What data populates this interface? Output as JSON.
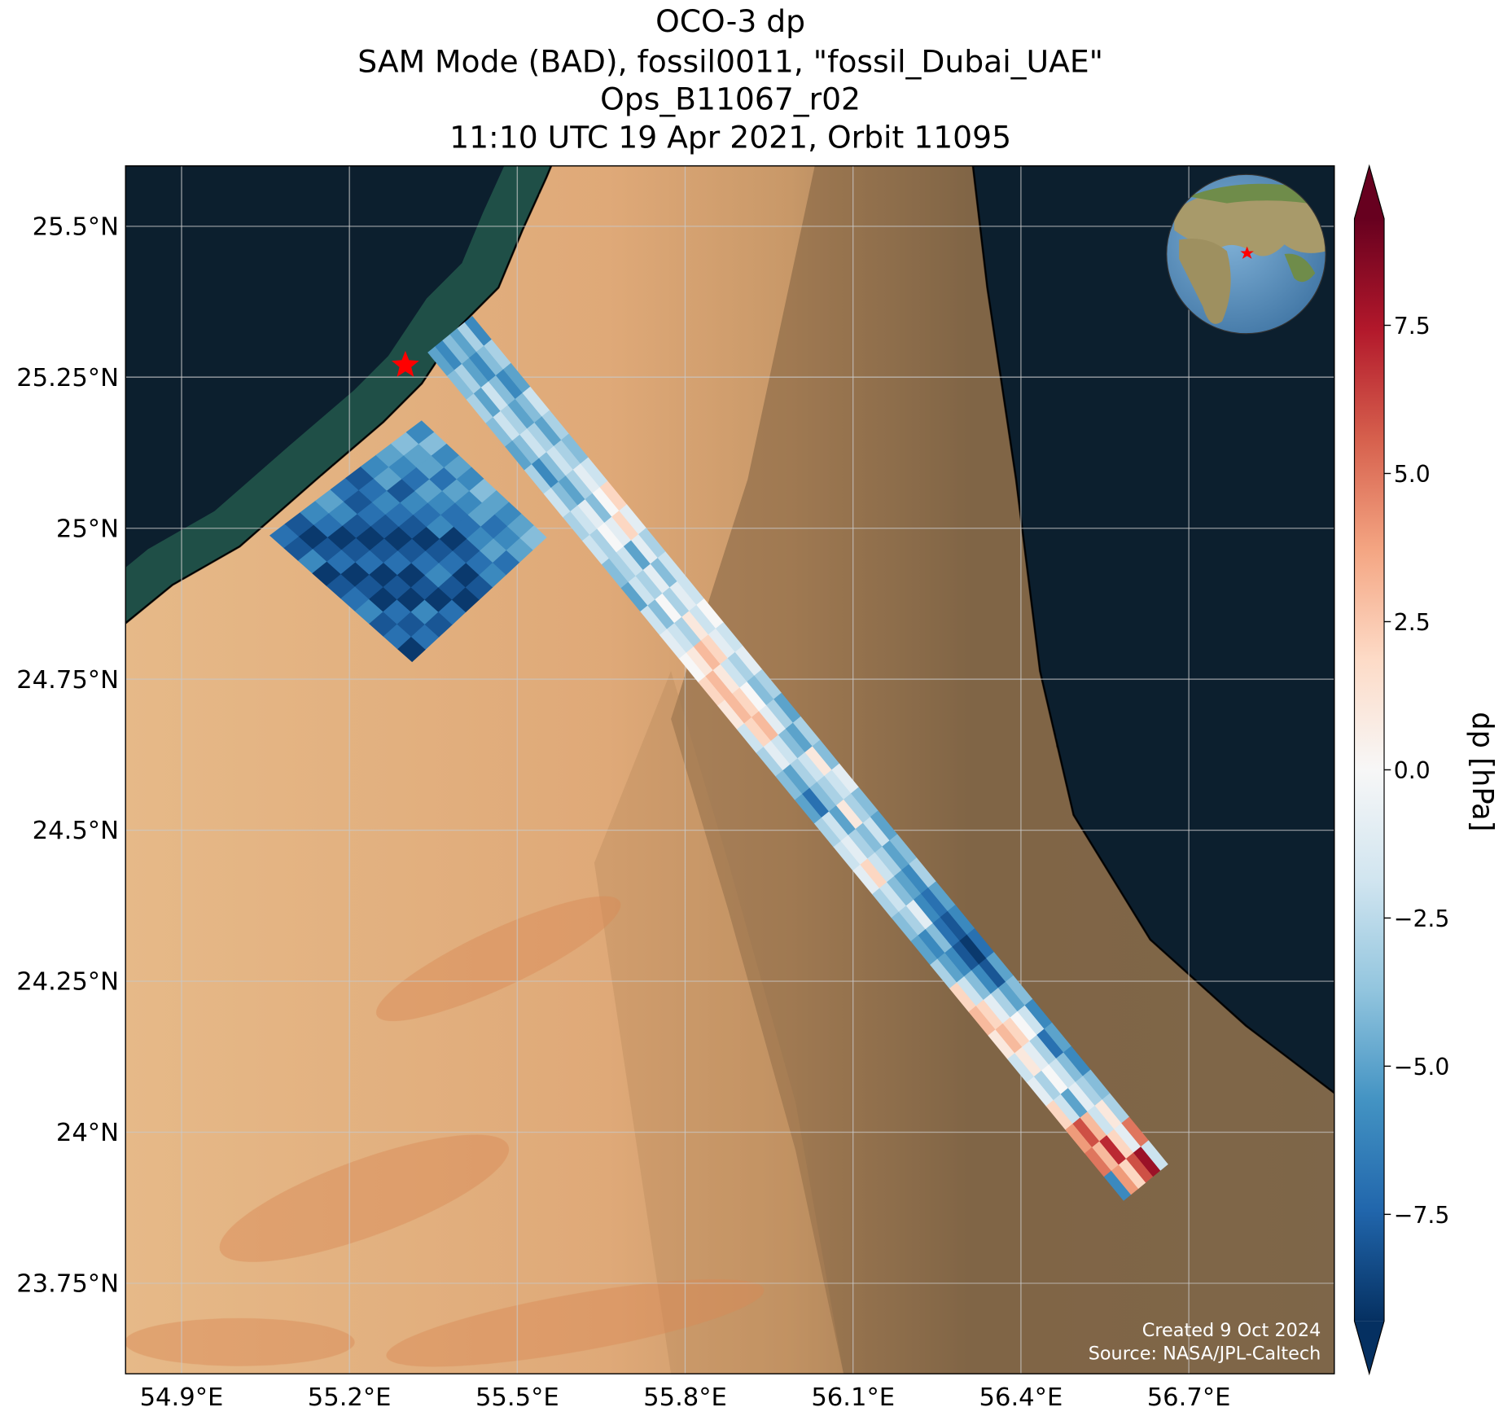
{
  "chart_data": {
    "type": "map",
    "title": [
      "OCO-3 dp",
      "SAM Mode (BAD), fossil0011, \"fossil_Dubai_UAE\"",
      "Ops_B11067_r02",
      "11:10 UTC 19 Apr 2021, Orbit 11095"
    ],
    "xlim": [
      54.8,
      56.96
    ],
    "ylim": [
      23.6,
      25.6
    ],
    "xticks": [
      {
        "value": 54.9,
        "label": "54.9°E"
      },
      {
        "value": 55.2,
        "label": "55.2°E"
      },
      {
        "value": 55.5,
        "label": "55.5°E"
      },
      {
        "value": 55.8,
        "label": "55.8°E"
      },
      {
        "value": 56.1,
        "label": "56.1°E"
      },
      {
        "value": 56.4,
        "label": "56.4°E"
      },
      {
        "value": 56.7,
        "label": "56.7°E"
      }
    ],
    "yticks": [
      {
        "value": 25.5,
        "label": "25.5°N"
      },
      {
        "value": 25.25,
        "label": "25.25°N"
      },
      {
        "value": 25,
        "label": "25°N"
      },
      {
        "value": 24.75,
        "label": "24.75°N"
      },
      {
        "value": 24.5,
        "label": "24.5°N"
      },
      {
        "value": 24.25,
        "label": "24.25°N"
      },
      {
        "value": 24,
        "label": "24°N"
      },
      {
        "value": 23.75,
        "label": "23.75°N"
      }
    ],
    "grid": true,
    "colorbar": {
      "label": "dp [hPa]",
      "colormap": "RdBu_r",
      "clim": [
        -9.3,
        9.3
      ],
      "extend": "both",
      "ticks": [
        {
          "value": 7.5,
          "label": "7.5"
        },
        {
          "value": 5,
          "label": "5.0"
        },
        {
          "value": 2.5,
          "label": "2.5"
        },
        {
          "value": 0,
          "label": "0.0"
        },
        {
          "value": -2.5,
          "label": "−2.5"
        },
        {
          "value": -5,
          "label": "−5.0"
        },
        {
          "value": -7.5,
          "label": "−7.5"
        }
      ]
    },
    "target": {
      "lon": 55.3,
      "lat": 25.27,
      "color": "#ff0000"
    },
    "swaths": [
      {
        "corners": [
          [
            55.3405,
            25.291
          ],
          [
            55.4195,
            25.351
          ],
          [
            56.6625,
            23.947
          ],
          [
            56.5835,
            23.887
          ]
        ],
        "values": [
          [
            -5,
            -6,
            -4,
            -5,
            -3,
            -6
          ],
          [
            -4,
            -3,
            -5,
            -6,
            -4,
            -3
          ],
          [
            -3,
            -5,
            -2,
            -4,
            -6,
            -5
          ],
          [
            -4,
            -2,
            -3,
            -5,
            -4,
            -2
          ],
          [
            -5,
            -4,
            -2,
            -3,
            -5,
            -3
          ],
          [
            -3,
            -6,
            -4,
            -2,
            -3,
            -4
          ],
          [
            -2,
            -4,
            -5,
            -3,
            -1,
            -2
          ],
          [
            -3,
            -2,
            -1,
            -4,
            0,
            2
          ],
          [
            -2,
            -3,
            0,
            -1,
            2,
            -1
          ],
          [
            -4,
            -3,
            -2,
            -5,
            -1,
            -3
          ],
          [
            -5,
            -2,
            -3,
            -1,
            -4,
            -2
          ],
          [
            -2,
            -4,
            0,
            -3,
            -1,
            -2
          ],
          [
            -1,
            -2,
            -3,
            1,
            -2,
            0
          ],
          [
            0,
            1,
            3,
            2,
            -1,
            -2
          ],
          [
            2,
            3,
            1,
            -2,
            -3,
            -1
          ],
          [
            1,
            3,
            2,
            0,
            -4,
            -3
          ],
          [
            -2,
            2,
            3,
            -1,
            -3,
            -5
          ],
          [
            -3,
            -1,
            -2,
            -4,
            -5,
            -3
          ],
          [
            -4,
            -5,
            -3,
            -2,
            1,
            -4
          ],
          [
            -5,
            -7,
            -4,
            -3,
            -2,
            -1
          ],
          [
            -3,
            -2,
            -5,
            1,
            -3,
            -4
          ],
          [
            -2,
            -1,
            -3,
            -4,
            -2,
            -5
          ],
          [
            -1,
            2,
            -2,
            -3,
            -5,
            -4
          ],
          [
            -3,
            -2,
            -4,
            -5,
            -6,
            -3
          ],
          [
            -4,
            -3,
            -1,
            -6,
            -7,
            -5
          ],
          [
            -5,
            -6,
            -4,
            -7,
            -8,
            -6
          ],
          [
            -3,
            -5,
            -6,
            -8,
            -9,
            -7
          ],
          [
            2,
            -2,
            -4,
            -6,
            -8,
            -5
          ],
          [
            3,
            2,
            -1,
            -3,
            -5,
            -4
          ],
          [
            1,
            3,
            2,
            0,
            -2,
            -6
          ],
          [
            -2,
            1,
            -1,
            -3,
            -7,
            -5
          ],
          [
            -1,
            -3,
            0,
            -2,
            -4,
            -6
          ],
          [
            2,
            -2,
            -5,
            -1,
            -3,
            -4
          ],
          [
            4,
            6,
            3,
            -2,
            1,
            -3
          ],
          [
            5,
            3,
            7,
            2,
            -1,
            5
          ],
          [
            -6,
            4,
            2,
            6,
            8,
            -2
          ]
        ]
      },
      {
        "corners": [
          [
            55.058,
            24.988
          ],
          [
            55.329,
            25.178
          ],
          [
            55.552,
            24.985
          ],
          [
            55.312,
            24.779
          ]
        ],
        "values": [
          [
            -7,
            -8,
            -6,
            -5,
            -7,
            -8,
            -6,
            -5,
            -4,
            -6
          ],
          [
            -8,
            -9,
            -7,
            -6,
            -8,
            -7,
            -5,
            -6,
            -5,
            -4
          ],
          [
            -6,
            -8,
            -9,
            -8,
            -7,
            -6,
            -8,
            -7,
            -5,
            -6
          ],
          [
            -9,
            -7,
            -8,
            -9,
            -8,
            -7,
            -6,
            -5,
            -7,
            -5
          ],
          [
            -8,
            -9,
            -7,
            -8,
            -9,
            -8,
            -7,
            -6,
            -5,
            -6
          ],
          [
            -7,
            -8,
            -9,
            -7,
            -8,
            -9,
            -6,
            -7,
            -6,
            -4
          ],
          [
            -6,
            -9,
            -8,
            -9,
            -7,
            -8,
            -9,
            -7,
            -5,
            -5
          ],
          [
            -8,
            -7,
            -9,
            -8,
            -6,
            -7,
            -8,
            -6,
            -7,
            -6
          ],
          [
            -7,
            -8,
            -6,
            -9,
            -8,
            -9,
            -7,
            -5,
            -6,
            -5
          ],
          [
            -9,
            -7,
            -8,
            -7,
            -9,
            -8,
            -6,
            -7,
            -5,
            -4
          ]
        ]
      }
    ],
    "credits": [
      "Created 9 Oct 2024",
      "Source: NASA/JPL-Caltech"
    ]
  }
}
